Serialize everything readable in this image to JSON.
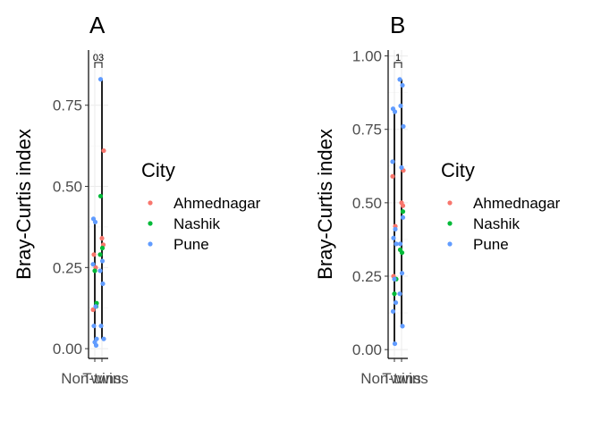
{
  "chart_data": [
    {
      "type": "scatter",
      "tag": "A",
      "ylabel": "Bray-Curtis index",
      "categories": [
        "Non-twins",
        "Twins"
      ],
      "yticks": [
        0.0,
        0.25,
        0.5,
        0.75
      ],
      "ytick_labels": [
        "0.00",
        "0.25",
        "0.50",
        "0.75"
      ],
      "ylim": [
        -0.03,
        0.92
      ],
      "annotation": "03",
      "legend": {
        "title": "City",
        "placement": "right"
      },
      "series": [
        {
          "name": "Ahmednagar",
          "color": "#F8766D",
          "points": [
            {
              "c": 0,
              "y": 0.12
            },
            {
              "c": 0,
              "y": 0.25
            },
            {
              "c": 0,
              "y": 0.29
            },
            {
              "c": 1,
              "y": 0.61
            },
            {
              "c": 1,
              "y": 0.34
            },
            {
              "c": 1,
              "y": 0.32
            }
          ]
        },
        {
          "name": "Nashik",
          "color": "#00BA38",
          "points": [
            {
              "c": 0,
              "y": 0.14
            },
            {
              "c": 0,
              "y": 0.24
            },
            {
              "c": 0,
              "y": 0.13
            },
            {
              "c": 1,
              "y": 0.47
            },
            {
              "c": 1,
              "y": 0.31
            },
            {
              "c": 1,
              "y": 0.29
            }
          ]
        },
        {
          "name": "Pune",
          "color": "#619CFF",
          "points": [
            {
              "c": 0,
              "y": 0.4
            },
            {
              "c": 0,
              "y": 0.39
            },
            {
              "c": 0,
              "y": 0.26
            },
            {
              "c": 0,
              "y": 0.13
            },
            {
              "c": 0,
              "y": 0.07
            },
            {
              "c": 0,
              "y": 0.03
            },
            {
              "c": 0,
              "y": 0.02
            },
            {
              "c": 0,
              "y": 0.01
            },
            {
              "c": 1,
              "y": 0.83
            },
            {
              "c": 1,
              "y": 0.27
            },
            {
              "c": 1,
              "y": 0.24
            },
            {
              "c": 1,
              "y": 0.2
            },
            {
              "c": 1,
              "y": 0.07
            },
            {
              "c": 1,
              "y": 0.03
            }
          ]
        }
      ]
    },
    {
      "type": "scatter",
      "tag": "B",
      "ylabel": "Bray-Curtis index",
      "categories": [
        "Non-twins",
        "Twins"
      ],
      "yticks": [
        0.0,
        0.25,
        0.5,
        0.75,
        1.0
      ],
      "ytick_labels": [
        "0.00",
        "0.25",
        "0.50",
        "0.75",
        "1.00"
      ],
      "ylim": [
        -0.03,
        1.02
      ],
      "annotation": "1",
      "legend": {
        "title": "City",
        "placement": "right"
      },
      "series": [
        {
          "name": "Ahmednagar",
          "color": "#F8766D",
          "points": [
            {
              "c": 0,
              "y": 0.59
            },
            {
              "c": 0,
              "y": 0.42
            },
            {
              "c": 0,
              "y": 0.25
            },
            {
              "c": 1,
              "y": 0.61
            },
            {
              "c": 1,
              "y": 0.5
            },
            {
              "c": 1,
              "y": 0.49
            },
            {
              "c": 1,
              "y": 0.34
            }
          ]
        },
        {
          "name": "Nashik",
          "color": "#00BA38",
          "points": [
            {
              "c": 0,
              "y": 0.24
            },
            {
              "c": 0,
              "y": 0.19
            },
            {
              "c": 1,
              "y": 0.47
            },
            {
              "c": 1,
              "y": 0.34
            },
            {
              "c": 1,
              "y": 0.33
            }
          ]
        },
        {
          "name": "Pune",
          "color": "#619CFF",
          "points": [
            {
              "c": 0,
              "y": 0.82
            },
            {
              "c": 0,
              "y": 0.81
            },
            {
              "c": 0,
              "y": 0.64
            },
            {
              "c": 0,
              "y": 0.41
            },
            {
              "c": 0,
              "y": 0.38
            },
            {
              "c": 0,
              "y": 0.36
            },
            {
              "c": 0,
              "y": 0.24
            },
            {
              "c": 0,
              "y": 0.16
            },
            {
              "c": 0,
              "y": 0.13
            },
            {
              "c": 0,
              "y": 0.02
            },
            {
              "c": 1,
              "y": 0.92
            },
            {
              "c": 1,
              "y": 0.9
            },
            {
              "c": 1,
              "y": 0.83
            },
            {
              "c": 1,
              "y": 0.76
            },
            {
              "c": 1,
              "y": 0.62
            },
            {
              "c": 1,
              "y": 0.45
            },
            {
              "c": 1,
              "y": 0.36
            },
            {
              "c": 1,
              "y": 0.26
            },
            {
              "c": 1,
              "y": 0.19
            },
            {
              "c": 1,
              "y": 0.08
            }
          ]
        }
      ]
    }
  ]
}
